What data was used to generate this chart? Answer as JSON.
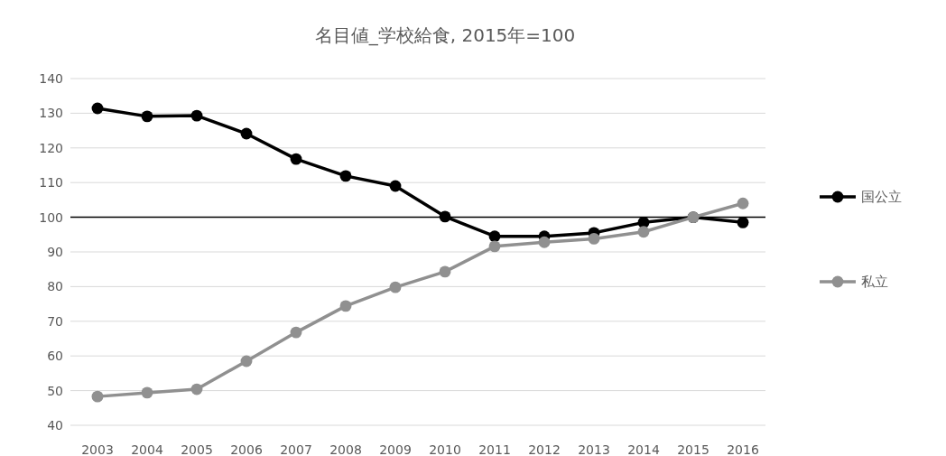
{
  "chart_data": {
    "type": "line",
    "title": "名目値_学校給食, 2015年=100",
    "categories": [
      "2003",
      "2004",
      "2005",
      "2006",
      "2007",
      "2008",
      "2009",
      "2010",
      "2011",
      "2012",
      "2013",
      "2014",
      "2015",
      "2016"
    ],
    "series": [
      {
        "name": "国公立",
        "color": "#000000",
        "values": [
          131.4,
          129.1,
          129.3,
          124.1,
          116.8,
          111.9,
          109,
          100.2,
          94.5,
          94.5,
          95.5,
          98.5,
          100,
          98.5
        ]
      },
      {
        "name": "私立",
        "color": "#909090",
        "values": [
          48.3,
          49.4,
          50.4,
          58.5,
          66.8,
          74.4,
          79.8,
          84.3,
          91.6,
          92.8,
          93.8,
          95.8,
          100,
          104
        ]
      }
    ],
    "ylim": [
      40,
      140
    ],
    "yticks": [
      40,
      50,
      60,
      70,
      80,
      90,
      100,
      110,
      120,
      130,
      140
    ],
    "grid": "y",
    "legend": "right",
    "marker": "circle",
    "line_style": "solid",
    "ref_lines": [
      {
        "axis": "y",
        "value": 100,
        "color": "#000000"
      }
    ]
  }
}
